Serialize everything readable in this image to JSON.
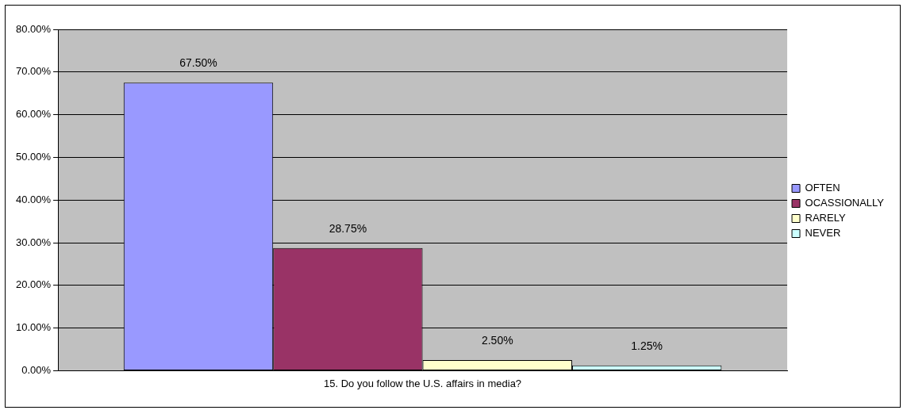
{
  "chart_data": {
    "type": "bar",
    "categories": [
      "15. Do you follow the U.S. affairs in media?"
    ],
    "series": [
      {
        "name": "OFTEN",
        "color": "#9999ff",
        "values": [
          67.5
        ],
        "value_labels": [
          "67.50%"
        ]
      },
      {
        "name": "OCASSIONALLY",
        "color": "#993366",
        "values": [
          28.75
        ],
        "value_labels": [
          "28.75%"
        ]
      },
      {
        "name": "RARELY",
        "color": "#ffffcc",
        "values": [
          2.5
        ],
        "value_labels": [
          "2.50%"
        ]
      },
      {
        "name": "NEVER",
        "color": "#ccffff",
        "values": [
          1.25
        ],
        "value_labels": [
          "1.25%"
        ]
      }
    ],
    "ylim": [
      0,
      80
    ],
    "yticks": [
      {
        "value": 0,
        "label": "0.00%"
      },
      {
        "value": 10,
        "label": "10.00%"
      },
      {
        "value": 20,
        "label": "20.00%"
      },
      {
        "value": 30,
        "label": "30.00%"
      },
      {
        "value": 40,
        "label": "40.00%"
      },
      {
        "value": 50,
        "label": "50.00%"
      },
      {
        "value": 60,
        "label": "60.00%"
      },
      {
        "value": 70,
        "label": "70.00%"
      },
      {
        "value": 80,
        "label": "80.00%"
      }
    ],
    "grid": "y",
    "legend": "right"
  }
}
